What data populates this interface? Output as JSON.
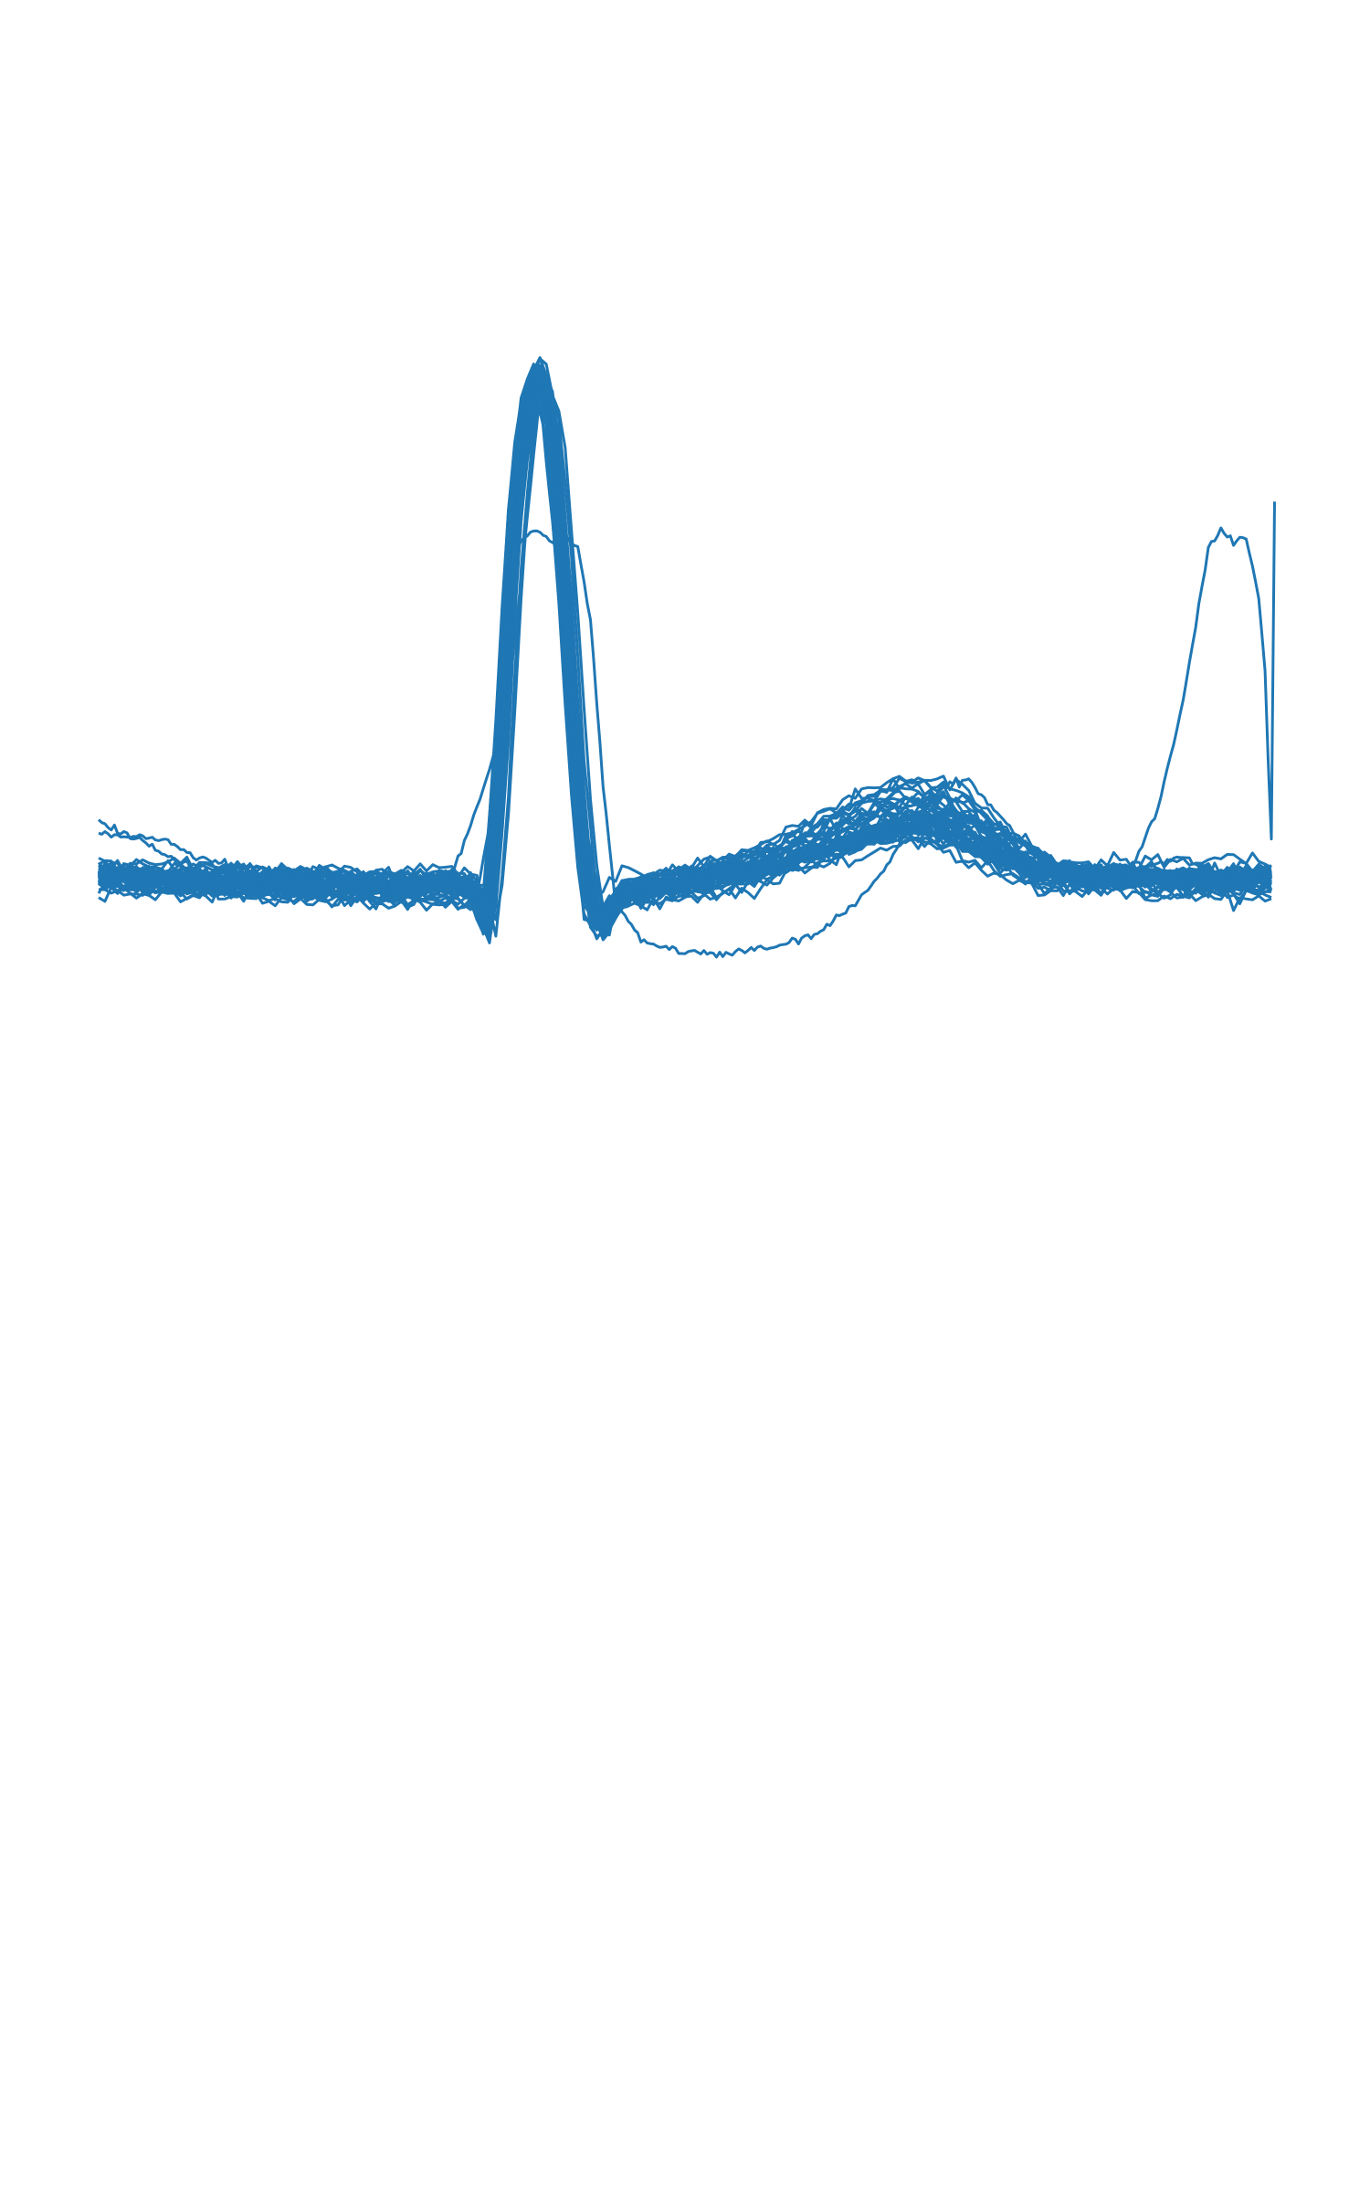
{
  "chart_data": {
    "type": "line",
    "title": "",
    "xlabel": "",
    "ylabel": "",
    "axes_visible": false,
    "grid": false,
    "legend": "none",
    "color": "#1f77b4",
    "xlim": [
      0,
      186
    ],
    "ylim": [
      -3.2,
      4.8
    ],
    "x_start": 0,
    "x_step": 1,
    "template": {
      "knots": [
        [
          0,
          0.02
        ],
        [
          15,
          -0.02
        ],
        [
          30,
          -0.04
        ],
        [
          45,
          -0.07
        ],
        [
          55,
          -0.05
        ],
        [
          60,
          -0.1
        ],
        [
          62,
          -0.45
        ],
        [
          64,
          0.9
        ],
        [
          66,
          2.9
        ],
        [
          68,
          3.95
        ],
        [
          70,
          4.2
        ],
        [
          72,
          3.9
        ],
        [
          74,
          2.6
        ],
        [
          76,
          0.9
        ],
        [
          78,
          -0.25
        ],
        [
          80,
          -0.4
        ],
        [
          83,
          -0.12
        ],
        [
          95,
          0.0
        ],
        [
          105,
          0.12
        ],
        [
          115,
          0.32
        ],
        [
          125,
          0.5
        ],
        [
          130,
          0.55
        ],
        [
          135,
          0.5
        ],
        [
          142,
          0.26
        ],
        [
          150,
          0.05
        ],
        [
          160,
          0.0
        ],
        [
          175,
          -0.02
        ],
        [
          186,
          0.0
        ]
      ]
    },
    "series_count": 44,
    "outliers": [
      {
        "knots": [
          [
            0,
            0.5
          ],
          [
            8,
            0.3
          ],
          [
            14,
            0.1
          ],
          [
            30,
            -0.02
          ],
          [
            48,
            -0.02
          ],
          [
            56,
            0.02
          ],
          [
            60,
            0.6
          ],
          [
            64,
            1.3
          ],
          [
            66,
            2.8
          ],
          [
            69,
            2.95
          ],
          [
            72,
            2.85
          ],
          [
            74,
            2.9
          ],
          [
            76,
            2.8
          ],
          [
            78,
            2.2
          ],
          [
            80,
            0.8
          ],
          [
            82,
            -0.2
          ],
          [
            86,
            -0.5
          ],
          [
            92,
            -0.6
          ],
          [
            100,
            -0.62
          ],
          [
            108,
            -0.55
          ],
          [
            114,
            -0.45
          ],
          [
            120,
            -0.2
          ],
          [
            124,
            0.05
          ],
          [
            128,
            0.4
          ],
          [
            134,
            0.8
          ],
          [
            138,
            0.85
          ],
          [
            142,
            0.6
          ],
          [
            146,
            0.35
          ],
          [
            150,
            0.1
          ],
          [
            158,
            0.05
          ],
          [
            164,
            0.1
          ],
          [
            168,
            0.6
          ],
          [
            172,
            1.5
          ],
          [
            176,
            2.8
          ],
          [
            178,
            2.95
          ],
          [
            180,
            2.85
          ],
          [
            182,
            2.9
          ],
          [
            184,
            2.4
          ],
          [
            185,
            1.7
          ],
          [
            186,
            0.35
          ],
          [
            186.5,
            3.2
          ]
        ]
      },
      {
        "knots": [
          [
            0,
            0.4
          ],
          [
            10,
            0.35
          ],
          [
            16,
            0.2
          ],
          [
            30,
            0.0
          ],
          [
            50,
            -0.05
          ],
          [
            60,
            -0.1
          ],
          [
            64,
            1.0
          ],
          [
            70,
            4.1
          ],
          [
            76,
            0.8
          ],
          [
            80,
            -0.3
          ],
          [
            90,
            -0.05
          ],
          [
            110,
            0.15
          ],
          [
            125,
            0.5
          ],
          [
            132,
            0.55
          ],
          [
            140,
            0.35
          ],
          [
            150,
            0.1
          ],
          [
            165,
            0.1
          ],
          [
            172,
            0.2
          ],
          [
            178,
            0.02
          ],
          [
            186,
            -0.02
          ]
        ]
      }
    ]
  }
}
